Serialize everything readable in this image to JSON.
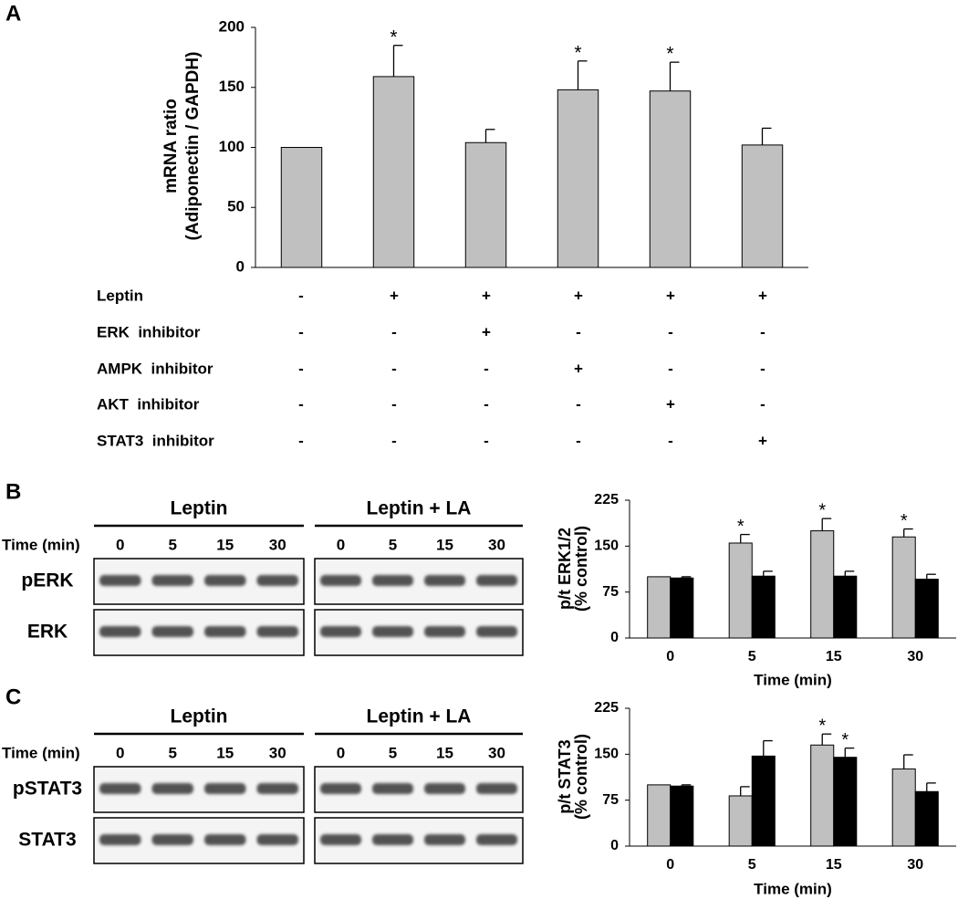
{
  "panel_labels": [
    "A",
    "B",
    "C"
  ],
  "chart_data": [
    {
      "type": "bar",
      "ylabel": [
        "mRNA ratio",
        "(Adiponectin / GAPDH)"
      ],
      "categories": [
        null,
        null,
        null,
        null,
        null,
        null
      ],
      "values": [
        100,
        159,
        104,
        148,
        147,
        102
      ],
      "errors": [
        null,
        26,
        11,
        24,
        24,
        14
      ],
      "significance": [
        null,
        "*",
        null,
        "*",
        "*",
        null
      ],
      "color": "#c0c0c0",
      "ylim": [
        0,
        200
      ],
      "yticks": [
        0,
        50,
        100,
        150,
        200
      ],
      "grid": false
    },
    {
      "type": "bar",
      "ylabel": [
        "p/t ERK1/2",
        "(% control)"
      ],
      "xlabel": "Time (min)",
      "categories": [
        "0",
        "5",
        "15",
        "30"
      ],
      "series": [
        {
          "color": "#c0c0c0",
          "values": [
            100,
            155,
            175,
            165
          ],
          "errors": [
            null,
            14,
            20,
            13
          ],
          "significance": [
            null,
            "*",
            "*",
            "*"
          ]
        },
        {
          "color": "#000000",
          "values": [
            98,
            101,
            101,
            96
          ],
          "errors": [
            2,
            8,
            8,
            8
          ],
          "significance": [
            null,
            null,
            null,
            null
          ]
        }
      ],
      "ylim": [
        0,
        225
      ],
      "yticks": [
        0,
        75,
        150,
        225
      ],
      "grid": false
    },
    {
      "type": "bar",
      "ylabel": [
        "p/t STAT3",
        "(% control)"
      ],
      "xlabel": "Time (min)",
      "categories": [
        "0",
        "5",
        "15",
        "30"
      ],
      "series": [
        {
          "color": "#c0c0c0",
          "values": [
            100,
            82,
            165,
            126
          ],
          "errors": [
            null,
            15,
            18,
            23
          ],
          "significance": [
            null,
            null,
            "*",
            null
          ]
        },
        {
          "color": "#000000",
          "values": [
            98,
            147,
            145,
            89
          ],
          "errors": [
            2,
            25,
            15,
            14
          ],
          "significance": [
            null,
            null,
            "*",
            null
          ]
        }
      ],
      "ylim": [
        0,
        225
      ],
      "yticks": [
        0,
        75,
        150,
        225
      ],
      "grid": false
    }
  ],
  "treatment_table": {
    "rows": [
      {
        "label": "Leptin",
        "marks": [
          "-",
          "+",
          "+",
          "+",
          "+",
          "+"
        ]
      },
      {
        "label": "ERK  inhibitor",
        "marks": [
          "-",
          "-",
          "+",
          "-",
          "-",
          "-"
        ]
      },
      {
        "label": "AMPK  inhibitor",
        "marks": [
          "-",
          "-",
          "-",
          "+",
          "-",
          "-"
        ]
      },
      {
        "label": "AKT  inhibitor",
        "marks": [
          "-",
          "-",
          "-",
          "-",
          "+",
          "-"
        ]
      },
      {
        "label": "STAT3  inhibitor",
        "marks": [
          "-",
          "-",
          "-",
          "-",
          "-",
          "+"
        ]
      }
    ]
  },
  "blots": [
    {
      "groups": [
        "Leptin",
        "Leptin + LA"
      ],
      "time_label": "Time (min)",
      "times": [
        "0",
        "5",
        "15",
        "30",
        "0",
        "5",
        "15",
        "30"
      ],
      "rows": [
        "pERK",
        "ERK"
      ]
    },
    {
      "groups": [
        "Leptin",
        "Leptin + LA"
      ],
      "time_label": "Time (min)",
      "times": [
        "0",
        "5",
        "15",
        "30",
        "0",
        "5",
        "15",
        "30"
      ],
      "rows": [
        "pSTAT3",
        "STAT3"
      ]
    }
  ]
}
